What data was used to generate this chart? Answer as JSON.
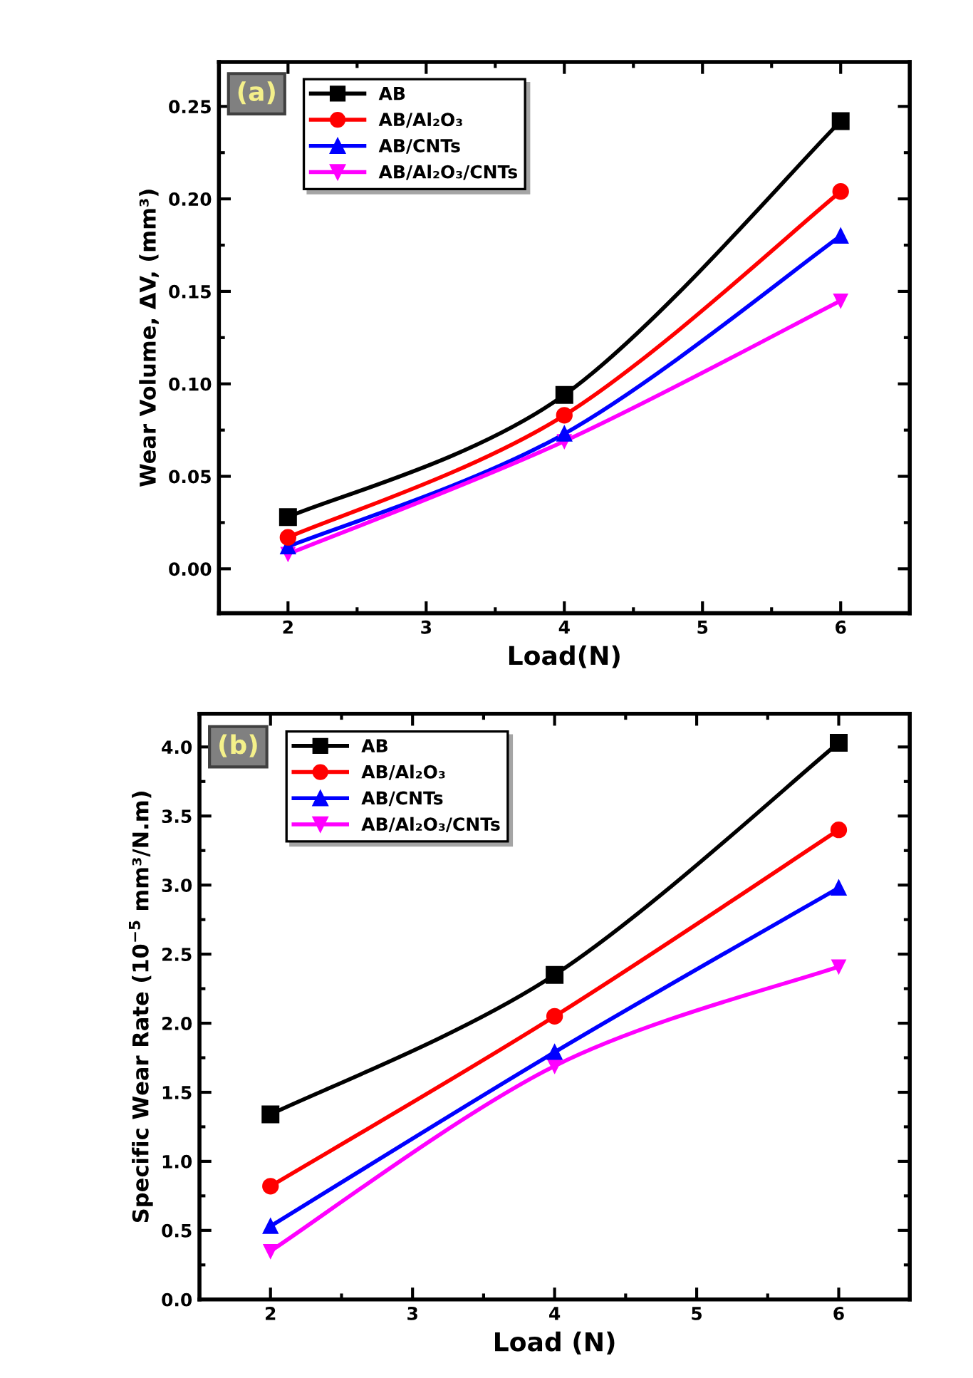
{
  "chart_data": [
    {
      "type": "line",
      "xlabel": "Load(N)",
      "ylabel": "Wear Volume, ΔV, (mm³)",
      "annotations": [
        "(a)"
      ],
      "x": [
        2,
        4,
        6
      ],
      "xlim": [
        1.5,
        6.5
      ],
      "xticks": [
        2,
        3,
        4,
        5,
        6
      ],
      "ylim": [
        -0.024,
        0.274
      ],
      "yticks": [
        {
          "value": 0.0,
          "label": "0.00"
        },
        {
          "value": 0.05,
          "label": "0.05"
        },
        {
          "value": 0.1,
          "label": "0.10"
        },
        {
          "value": 0.15,
          "label": "0.15"
        },
        {
          "value": 0.2,
          "label": "0.20"
        },
        {
          "value": 0.25,
          "label": "0.25"
        }
      ],
      "grid": false,
      "legend": "top left",
      "line_style": "solid",
      "series": [
        {
          "name": "AB",
          "color": "#000000",
          "marker": "square",
          "values": [
            0.028,
            0.094,
            0.242
          ]
        },
        {
          "name": "AB/Al₂O₃",
          "color": "#ff0000",
          "marker": "circle",
          "values": [
            0.017,
            0.083,
            0.204
          ]
        },
        {
          "name": "AB/CNTs",
          "color": "#0000ff",
          "marker": "triangle",
          "values": [
            0.012,
            0.073,
            0.18
          ]
        },
        {
          "name": "AB/Al₂O₃/CNTs",
          "color": "#ff00ff",
          "marker": "triangle_down",
          "values": [
            0.008,
            0.069,
            0.145
          ]
        }
      ]
    },
    {
      "type": "line",
      "xlabel": "Load (N)",
      "ylabel": "Specific Wear Rate (10$^{−5}$ mm³/N.m)",
      "annotations": [
        "(b)"
      ],
      "x": [
        2,
        4,
        6
      ],
      "xlim": [
        1.5,
        6.5
      ],
      "xticks": [
        2,
        3,
        4,
        5,
        6
      ],
      "ylim": [
        0,
        4.24
      ],
      "yticks": [
        {
          "value": 0,
          "label": "0.0"
        },
        {
          "value": 0.5,
          "label": "0.5"
        },
        {
          "value": 1,
          "label": "1.0"
        },
        {
          "value": 1.5,
          "label": "1.5"
        },
        {
          "value": 2,
          "label": "2.0"
        },
        {
          "value": 2.5,
          "label": "2.5"
        },
        {
          "value": 3,
          "label": "3.0"
        },
        {
          "value": 3.5,
          "label": "3.5"
        },
        {
          "value": 4,
          "label": "4.0"
        }
      ],
      "grid": false,
      "legend": "top left",
      "line_style": "solid",
      "series": [
        {
          "name": "AB",
          "color": "#000000",
          "marker": "square",
          "values": [
            1.34,
            2.35,
            4.03
          ]
        },
        {
          "name": "AB/Al₂O₃",
          "color": "#ff0000",
          "marker": "circle",
          "values": [
            0.82,
            2.05,
            3.4
          ]
        },
        {
          "name": "AB/CNTs",
          "color": "#0000ff",
          "marker": "triangle",
          "values": [
            0.53,
            1.79,
            2.98
          ]
        },
        {
          "name": "AB/Al₂O₃/CNTs",
          "color": "#ff00ff",
          "marker": "triangle_down",
          "values": [
            0.35,
            1.69,
            2.41
          ]
        }
      ]
    }
  ]
}
